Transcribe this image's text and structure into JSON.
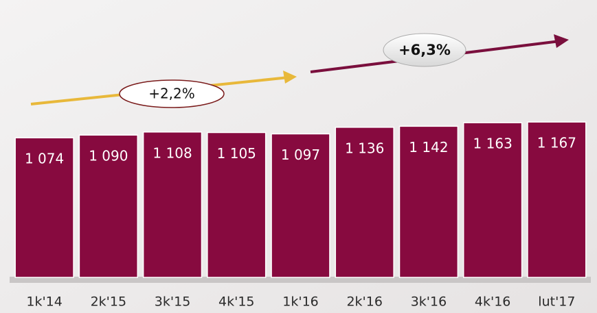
{
  "chart_data": {
    "type": "bar",
    "categories": [
      "1k'14",
      "2k'15",
      "3k'15",
      "4k'15",
      "1k'16",
      "2k'16",
      "3k'16",
      "4k'16",
      "lut'17"
    ],
    "values": [
      1074,
      1090,
      1108,
      1105,
      1097,
      1136,
      1142,
      1163,
      1167
    ],
    "value_labels": [
      "1 074",
      "1 090",
      "1 108",
      "1 105",
      "1 097",
      "1 136",
      "1 142",
      "1 163",
      "1 167"
    ],
    "color": "#870a3f",
    "ylim": [
      250,
      1200
    ],
    "annotations": [
      "+2,2%",
      "+6,3%"
    ]
  }
}
